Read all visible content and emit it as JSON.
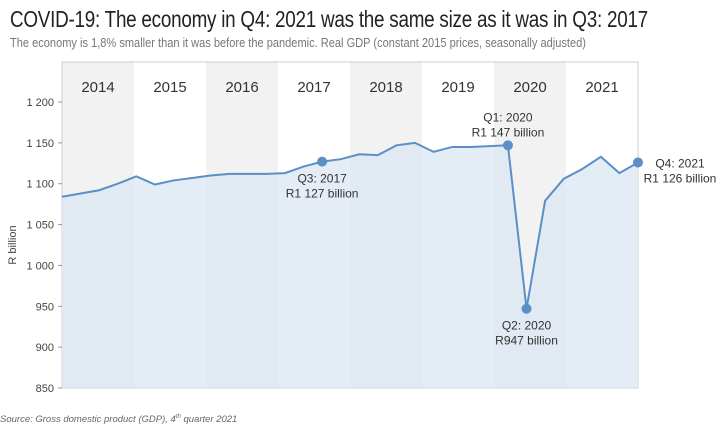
{
  "title": "COVID-19: The economy in Q4: 2021 was the same size as it was in Q3: 2017",
  "subtitle": "The economy is 1,8% smaller than it was before the pandemic. Real GDP (constant 2015 prices, seasonally adjusted)",
  "source": {
    "text": "Source: Gross domestic product (GDP), 4",
    "sup": "th",
    "tail": " quarter 2021"
  },
  "chart_data": {
    "type": "area",
    "ylabel": "R billion",
    "ylim": [
      850,
      1200
    ],
    "yticks": [
      "850",
      "900",
      "950",
      "1 000",
      "1 050",
      "1 100",
      "1 150",
      "1 200"
    ],
    "ytick_values": [
      850,
      900,
      950,
      1000,
      1050,
      1100,
      1150,
      1200
    ],
    "years": [
      "2014",
      "2015",
      "2016",
      "2017",
      "2018",
      "2019",
      "2020",
      "2021"
    ],
    "quarters_per_year": 4,
    "values": [
      1084,
      1088,
      1092,
      1100,
      1109,
      1099,
      1104,
      1107,
      1110,
      1112,
      1112,
      1112,
      1113,
      1121,
      1127,
      1130,
      1136,
      1135,
      1147,
      1150,
      1139,
      1145,
      1145,
      1146,
      1147,
      947,
      1079,
      1106,
      1118,
      1133,
      1113,
      1126
    ],
    "line_color": "#5b8fc7",
    "fill_color": "#dbe5f1",
    "annotations": [
      {
        "index": 14,
        "line1": "Q3: 2017",
        "line2": "R1 127 billion",
        "pos": "below"
      },
      {
        "index": 24,
        "line1": "Q1: 2020",
        "line2": "R1 147 billion",
        "pos": "above"
      },
      {
        "index": 25,
        "line1": "Q2: 2020",
        "line2": "R947 billion",
        "pos": "below"
      },
      {
        "index": 31,
        "line1": "Q4: 2021",
        "line2": "R1 126 billion",
        "pos": "right"
      }
    ],
    "grid": false
  }
}
